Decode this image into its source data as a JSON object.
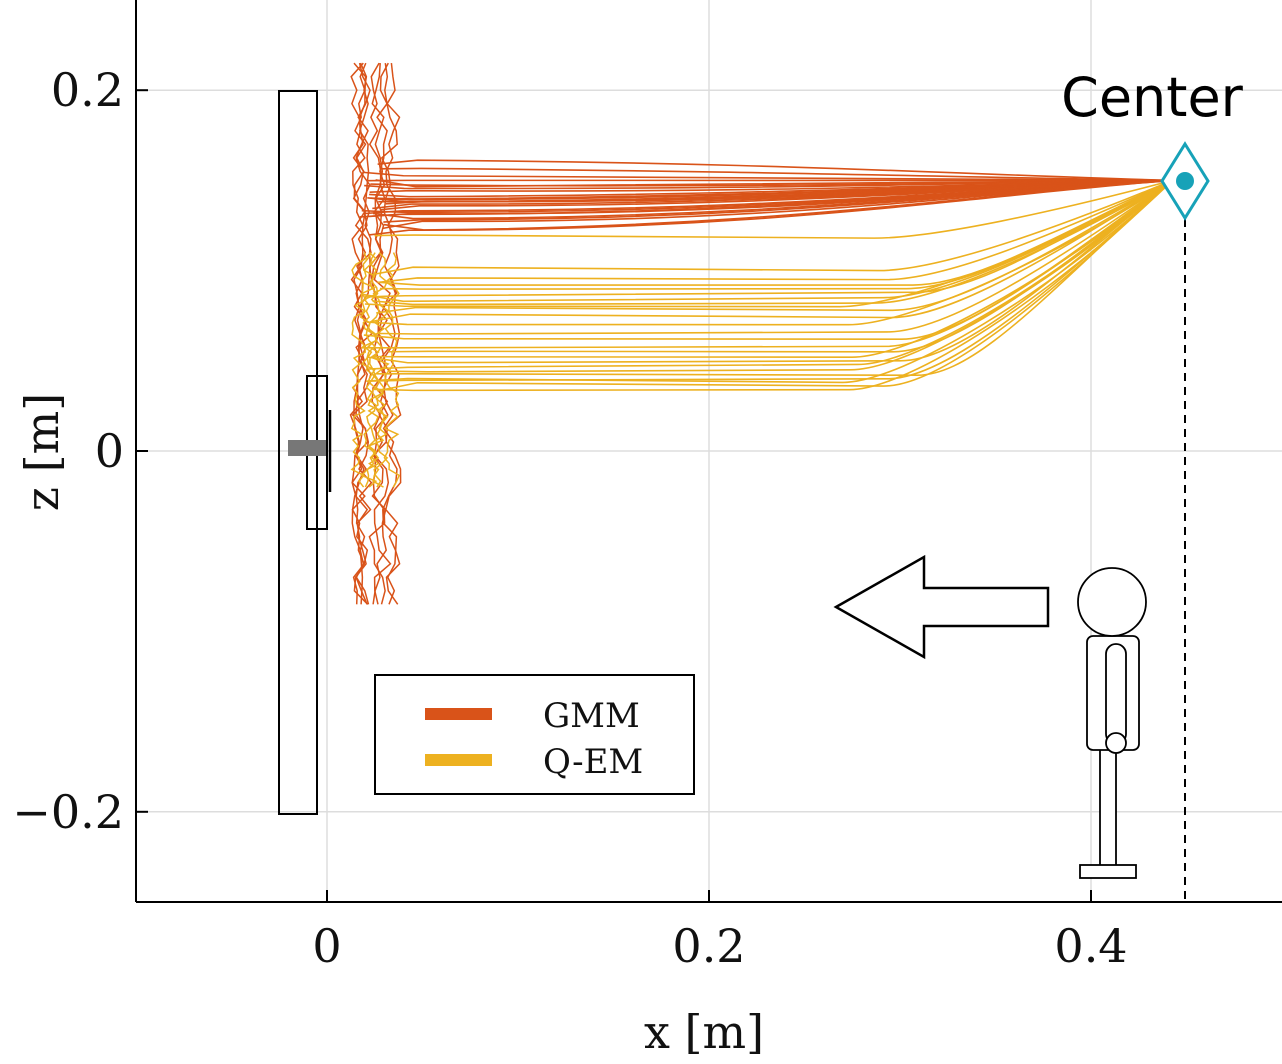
{
  "chart_data": {
    "type": "line",
    "title": "",
    "xlabel": "x [m]",
    "ylabel": "z [m]",
    "xlim": [
      -0.1,
      0.5
    ],
    "ylim": [
      -0.25,
      0.25
    ],
    "xticks": [
      0,
      0.2,
      0.4
    ],
    "yticks": [
      -0.2,
      0,
      0.2
    ],
    "xtick_labels": [
      "0",
      "0.2",
      "0.4"
    ],
    "ytick_labels": [
      "−0.2",
      "0",
      "0.2"
    ],
    "grid": true,
    "legend": {
      "placement": "lower-left",
      "entries": [
        "GMM",
        "Q-EM"
      ]
    },
    "colors": {
      "GMM": "#d95319",
      "Q-EM": "#edb120",
      "center_marker": "#17a2b8"
    },
    "center": {
      "label": "Center",
      "x": 0.45,
      "z": 0.15
    },
    "series": [
      {
        "name": "GMM",
        "end_x": 0.025,
        "start_z": 0.15,
        "curves_z": [
          0.16,
          0.155,
          0.152,
          0.15,
          0.148,
          0.146,
          0.145,
          0.143,
          0.142,
          0.141,
          0.14,
          0.139,
          0.138,
          0.137,
          0.136,
          0.135,
          0.133,
          0.132,
          0.131,
          0.13,
          0.129,
          0.128,
          0.126,
          0.124,
          0.122
        ]
      },
      {
        "name": "Q-EM",
        "end_x": 0.025,
        "start_z": 0.15,
        "curves_z": [
          0.118,
          0.1,
          0.095,
          0.092,
          0.09,
          0.088,
          0.085,
          0.082,
          0.08,
          0.078,
          0.074,
          0.07,
          0.066,
          0.062,
          0.058,
          0.055,
          0.052,
          0.05,
          0.048,
          0.045,
          0.042,
          0.04,
          0.038,
          0.036,
          0.034
        ]
      }
    ]
  }
}
